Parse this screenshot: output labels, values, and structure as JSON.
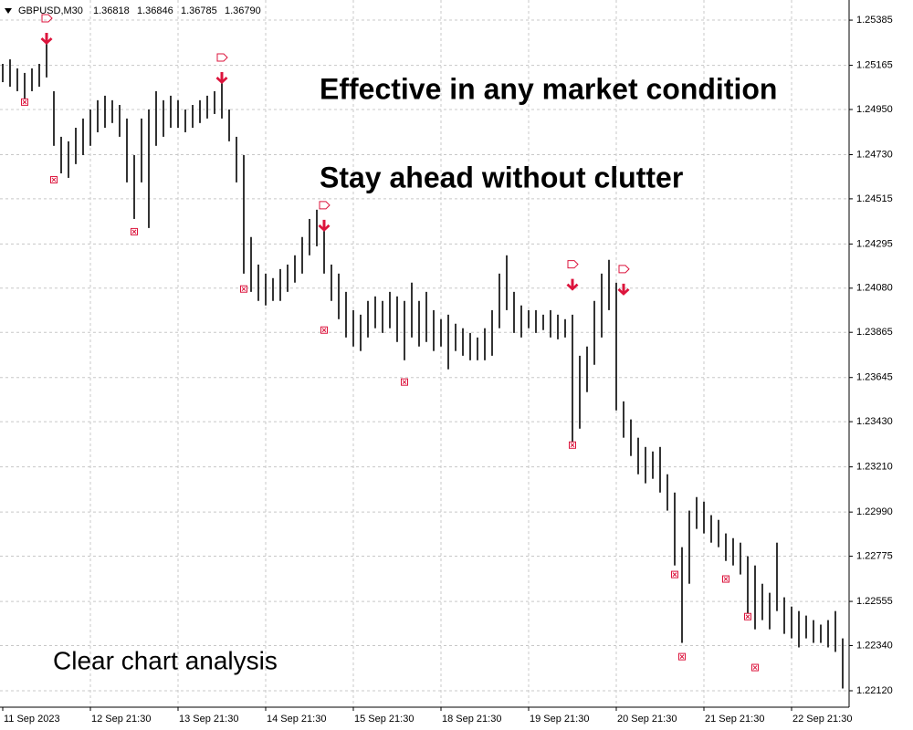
{
  "chart_data": {
    "type": "hilo",
    "header": {
      "symbol": "GBPUSD,M30",
      "quotes": [
        "1.36818",
        "1.36846",
        "1.36785",
        "1.36790"
      ]
    },
    "annotations": [
      "Effective in any market condition",
      "Stay ahead without clutter",
      "Clear chart analysis"
    ],
    "color": "#000000",
    "grid": true,
    "grid_color": "#c8c8c8",
    "ylim": [
      1.2204,
      1.25483
    ],
    "yticks": [
      1.25385,
      1.25165,
      {
        "value": 1.2495,
        "label": "1.24950"
      },
      {
        "value": 1.2473,
        "label": "1.24730"
      },
      1.24515,
      1.24295,
      {
        "value": 1.2408,
        "label": "1.24080"
      },
      1.23865,
      1.23645,
      {
        "value": 1.2343,
        "label": "1.23430"
      },
      {
        "value": 1.2321,
        "label": "1.23210"
      },
      {
        "value": 1.2299,
        "label": "1.22990"
      },
      1.22775,
      1.22555,
      {
        "value": 1.2234,
        "label": "1.22340"
      },
      {
        "value": 1.2212,
        "label": "1.22120"
      }
    ],
    "categories": [
      "11 Sep 2023",
      null,
      null,
      null,
      null,
      null,
      null,
      null,
      null,
      null,
      null,
      null,
      "12 Sep 21:30",
      null,
      null,
      null,
      null,
      null,
      null,
      null,
      null,
      null,
      null,
      null,
      "13 Sep 21:30",
      null,
      null,
      null,
      null,
      null,
      null,
      null,
      null,
      null,
      null,
      null,
      "14 Sep 21:30",
      null,
      null,
      null,
      null,
      null,
      null,
      null,
      null,
      null,
      null,
      null,
      "15 Sep 21:30",
      null,
      null,
      null,
      null,
      null,
      null,
      null,
      null,
      null,
      null,
      null,
      "18 Sep 21:30",
      null,
      null,
      null,
      null,
      null,
      null,
      null,
      null,
      null,
      null,
      null,
      "19 Sep 21:30",
      null,
      null,
      null,
      null,
      null,
      null,
      null,
      null,
      null,
      null,
      null,
      "20 Sep 21:30",
      null,
      null,
      null,
      null,
      null,
      null,
      null,
      null,
      null,
      null,
      null,
      "21 Sep 21:30",
      null,
      null,
      null,
      null,
      null,
      null,
      null,
      null,
      null,
      null,
      null,
      "22 Sep 21:30",
      null,
      null,
      null,
      null,
      null,
      null,
      null
    ],
    "high": [
      1.25172,
      1.25194,
      1.2515,
      1.25128,
      1.2515,
      1.25172,
      1.25305,
      1.25039,
      1.24817,
      1.24795,
      1.24861,
      1.24906,
      1.2495,
      1.24995,
      1.25017,
      1.24995,
      1.24972,
      1.24906,
      1.24728,
      1.24906,
      1.2495,
      1.25039,
      1.24995,
      1.25017,
      1.24995,
      1.2495,
      1.24972,
      1.24995,
      1.25017,
      1.25039,
      1.25083,
      1.2495,
      1.24817,
      1.24728,
      1.24329,
      1.24195,
      1.24151,
      1.24129,
      1.24173,
      1.24195,
      1.2424,
      1.24329,
      1.24417,
      1.24462,
      1.24395,
      1.24195,
      1.24151,
      1.24062,
      1.23973,
      1.23951,
      1.24018,
      1.2404,
      1.24018,
      1.24062,
      1.2404,
      1.24018,
      1.24107,
      1.24018,
      1.24062,
      1.23973,
      1.23929,
      1.23951,
      1.23907,
      1.23885,
      1.23862,
      1.2384,
      1.23885,
      1.23973,
      1.24151,
      1.2424,
      1.24062,
      1.23996,
      1.23973,
      1.23973,
      1.23951,
      1.23973,
      1.23951,
      1.23929,
      1.23951,
      1.23751,
      1.23796,
      1.24018,
      1.24151,
      1.24218,
      1.24107,
      1.23529,
      1.23441,
      1.23352,
      1.23307,
      1.23285,
      1.23307,
      1.23174,
      1.23085,
      1.22819,
      1.22997,
      1.23063,
      1.23041,
      1.22975,
      1.22952,
      1.22886,
      1.22863,
      1.22841,
      1.22775,
      1.2273,
      1.22641,
      1.22597,
      1.22841,
      1.22575,
      1.2253,
      1.22508,
      1.22486,
      1.22464,
      1.22442,
      1.22464,
      1.22508,
      1.22375
    ],
    "low": [
      1.25083,
      1.25061,
      1.25039,
      1.24995,
      1.25039,
      1.25061,
      1.25106,
      1.24773,
      1.24639,
      1.24617,
      1.24684,
      1.24728,
      1.24773,
      1.24839,
      1.24861,
      1.24884,
      1.24817,
      1.24595,
      1.24417,
      1.24595,
      1.24373,
      1.24773,
      1.24817,
      1.24861,
      1.24861,
      1.24839,
      1.24861,
      1.24884,
      1.24906,
      1.24928,
      1.24906,
      1.24795,
      1.24595,
      1.24151,
      1.24062,
      1.24018,
      1.23996,
      1.24018,
      1.24018,
      1.24062,
      1.24107,
      1.24151,
      1.2424,
      1.24284,
      1.24151,
      1.24018,
      1.23929,
      1.2384,
      1.23796,
      1.23774,
      1.2384,
      1.23885,
      1.23862,
      1.23885,
      1.23818,
      1.23729,
      1.2384,
      1.23796,
      1.23818,
      1.23774,
      1.23796,
      1.23685,
      1.23774,
      1.23751,
      1.23729,
      1.23729,
      1.23729,
      1.23751,
      1.23885,
      1.23973,
      1.23862,
      1.2384,
      1.23885,
      1.23862,
      1.23876,
      1.2384,
      1.23831,
      1.2384,
      1.2333,
      1.23396,
      1.23574,
      1.23707,
      1.2384,
      1.23973,
      1.23485,
      1.23352,
      1.23263,
      1.23174,
      1.2313,
      1.23152,
      1.23085,
      1.22997,
      1.2273,
      1.22353,
      1.22641,
      1.22908,
      1.22886,
      1.22841,
      1.22819,
      1.22752,
      1.2273,
      1.22686,
      1.22464,
      1.22419,
      1.22464,
      1.22419,
      1.22508,
      1.22397,
      1.22375,
      1.22331,
      1.22375,
      1.22353,
      1.22353,
      1.22331,
      1.22309,
      1.22131
    ],
    "sell_signals": {
      "bar": [
        6,
        30,
        44,
        78,
        85
      ],
      "values": [
        1.25283,
        1.25092,
        1.24373,
        1.24085,
        1.24062
      ],
      "color": "#dc143c"
    },
    "exits": {
      "bar": [
        3,
        7,
        18,
        33,
        44,
        55,
        78,
        92,
        93,
        99,
        102,
        103
      ],
      "values": [
        1.24986,
        1.24608,
        1.24355,
        1.24076,
        1.23876,
        1.23623,
        1.23316,
        1.22686,
        1.22286,
        1.22664,
        1.22481,
        1.22233
      ],
      "color": "#dc143c"
    }
  }
}
